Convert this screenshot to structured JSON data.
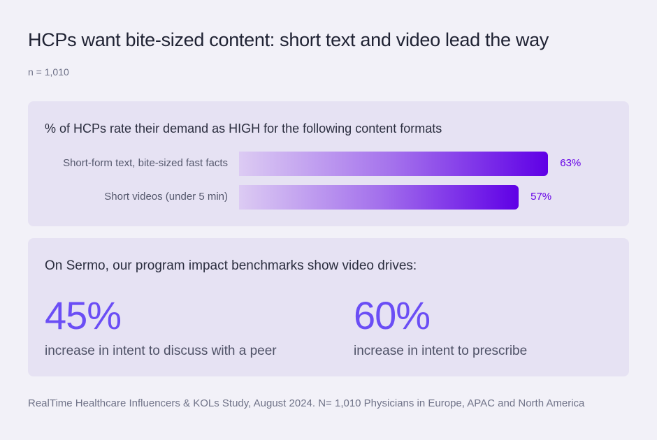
{
  "title": "HCPs want bite-sized content: short text and video lead the way",
  "sample": "n = 1,010",
  "chart_data": {
    "type": "bar",
    "orientation": "horizontal",
    "title": "% of HCPs rate their demand as HIGH for the following content formats",
    "categories": [
      "Short-form text, bite-sized fast facts",
      "Short videos (under 5 min)"
    ],
    "values": [
      63,
      57
    ],
    "value_labels": [
      "63%",
      "57%"
    ],
    "xlim": [
      0,
      100
    ],
    "grid": false,
    "colors": {
      "bar_start": "#dccbf3",
      "bar_end": "#5f00e6",
      "value_label": "#6500e6"
    }
  },
  "benchmarks": {
    "title": "On Sermo, our program impact benchmarks show video drives:",
    "stats": [
      {
        "value": "45%",
        "label": "increase in intent to discuss with a peer"
      },
      {
        "value": "60%",
        "label": "increase in intent to prescribe"
      }
    ],
    "accent": "#6b4ef5"
  },
  "source": "RealTime Healthcare Influencers & KOLs Study, August 2024. N= 1,010 Physicians in Europe, APAC and North America"
}
